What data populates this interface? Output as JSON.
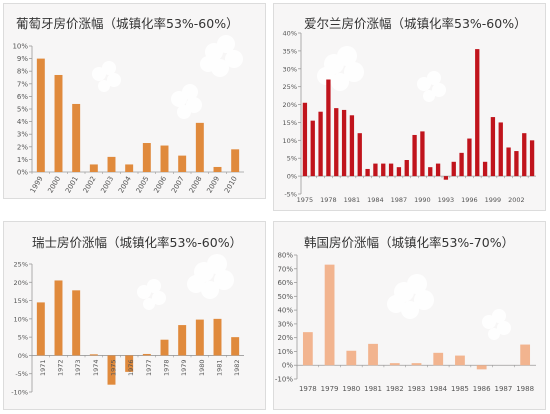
{
  "chart_data": [
    {
      "type": "bar",
      "title": "葡萄牙房价涨幅（城镇化率53%-60%）",
      "color": "#e08a3c",
      "categories": [
        "1999",
        "2000",
        "2001",
        "2002",
        "2003",
        "2004",
        "2005",
        "2006",
        "2007",
        "2008",
        "2009",
        "2010"
      ],
      "values": [
        9.0,
        7.7,
        5.4,
        0.6,
        1.2,
        0.6,
        2.3,
        2.1,
        1.3,
        3.9,
        0.4,
        1.8
      ],
      "ylim": [
        0,
        10
      ],
      "yticks": [
        "0%",
        "1%",
        "2%",
        "3%",
        "4%",
        "5%",
        "6%",
        "7%",
        "8%",
        "9%",
        "10%"
      ],
      "grid": false,
      "legend": "none"
    },
    {
      "type": "bar",
      "title": "爱尔兰房价涨幅（城镇化率53%-60%）",
      "color": "#c0141c",
      "categories": [
        "1975",
        "1976",
        "1977",
        "1978",
        "1979",
        "1980",
        "1981",
        "1982",
        "1983",
        "1984",
        "1985",
        "1986",
        "1987",
        "1988",
        "1989",
        "1990",
        "1991",
        "1992",
        "1993",
        "1994",
        "1995",
        "1996",
        "1997",
        "1998",
        "1999",
        "2000",
        "2001",
        "2002",
        "2003",
        "2004"
      ],
      "xticks": [
        "1975",
        "1978",
        "1981",
        "1984",
        "1987",
        "1990",
        "1993",
        "1996",
        "1999",
        "2002"
      ],
      "values": [
        20.5,
        15.5,
        18.0,
        27.0,
        19.0,
        18.5,
        17.0,
        12.0,
        2.0,
        3.5,
        3.5,
        3.5,
        2.5,
        4.5,
        11.5,
        12.5,
        2.5,
        3.5,
        -1.0,
        4.0,
        6.5,
        10.5,
        35.5,
        4.0,
        16.5,
        15.0,
        8.0,
        7.0,
        12.0,
        10.0
      ],
      "ylim": [
        -5,
        40
      ],
      "yticks": [
        "-5%",
        "0%",
        "5%",
        "10%",
        "15%",
        "20%",
        "25%",
        "30%",
        "35%",
        "40%"
      ],
      "grid": false,
      "legend": "none"
    },
    {
      "type": "bar",
      "title": "瑞士房价涨幅（城镇化率53%-60%）",
      "color": "#e08a3c",
      "categories": [
        "1971",
        "1972",
        "1973",
        "1974",
        "1975",
        "1976",
        "1977",
        "1978",
        "1979",
        "1980",
        "1981",
        "1982"
      ],
      "values": [
        14.5,
        20.5,
        17.8,
        0.3,
        -8.0,
        -4.5,
        0.4,
        4.3,
        8.3,
        9.8,
        10.0,
        5.0
      ],
      "ylim": [
        -10,
        25
      ],
      "yticks": [
        "-10%",
        "-5%",
        "0%",
        "5%",
        "10%",
        "15%",
        "20%",
        "25%"
      ],
      "grid": false,
      "legend": "none"
    },
    {
      "type": "bar",
      "title": "韩国房价涨幅（城镇化率53%-70%）",
      "color": "#f2b48f",
      "categories": [
        "1978",
        "1979",
        "1980",
        "1981",
        "1982",
        "1983",
        "1984",
        "1985",
        "1986",
        "1987",
        "1988"
      ],
      "values": [
        24.0,
        73.0,
        10.5,
        15.5,
        1.5,
        1.5,
        9.0,
        7.0,
        -3.0,
        0.0,
        15.0
      ],
      "ylim": [
        -10,
        80
      ],
      "yticks": [
        "-10%",
        "0%",
        "10%",
        "20%",
        "30%",
        "40%",
        "50%",
        "60%",
        "70%",
        "80%"
      ],
      "grid": false,
      "legend": "none"
    }
  ]
}
